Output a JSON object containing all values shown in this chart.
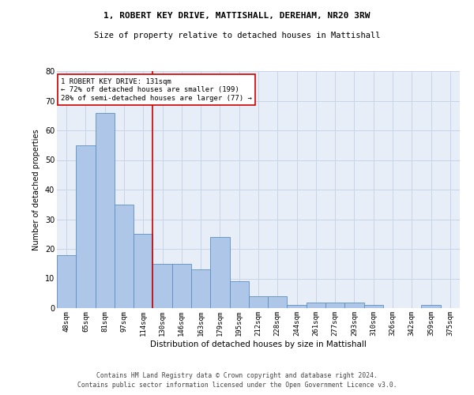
{
  "title": "1, ROBERT KEY DRIVE, MATTISHALL, DEREHAM, NR20 3RW",
  "subtitle": "Size of property relative to detached houses in Mattishall",
  "xlabel": "Distribution of detached houses by size in Mattishall",
  "ylabel": "Number of detached properties",
  "categories": [
    "48sqm",
    "65sqm",
    "81sqm",
    "97sqm",
    "114sqm",
    "130sqm",
    "146sqm",
    "163sqm",
    "179sqm",
    "195sqm",
    "212sqm",
    "228sqm",
    "244sqm",
    "261sqm",
    "277sqm",
    "293sqm",
    "310sqm",
    "326sqm",
    "342sqm",
    "359sqm",
    "375sqm"
  ],
  "values": [
    18,
    55,
    66,
    35,
    25,
    15,
    15,
    13,
    24,
    9,
    4,
    4,
    1,
    2,
    2,
    2,
    1,
    0,
    0,
    1,
    0
  ],
  "bar_color": "#aec6e8",
  "bar_edge_color": "#5a8fc2",
  "vline_color": "#cc0000",
  "annotation_text": "1 ROBERT KEY DRIVE: 131sqm\n← 72% of detached houses are smaller (199)\n28% of semi-detached houses are larger (77) →",
  "annotation_box_color": "#cc0000",
  "grid_color": "#c8d4e8",
  "background_color": "#e8eef8",
  "ylim": [
    0,
    80
  ],
  "yticks": [
    0,
    10,
    20,
    30,
    40,
    50,
    60,
    70,
    80
  ],
  "footer_line1": "Contains HM Land Registry data © Crown copyright and database right 2024.",
  "footer_line2": "Contains public sector information licensed under the Open Government Licence v3.0."
}
